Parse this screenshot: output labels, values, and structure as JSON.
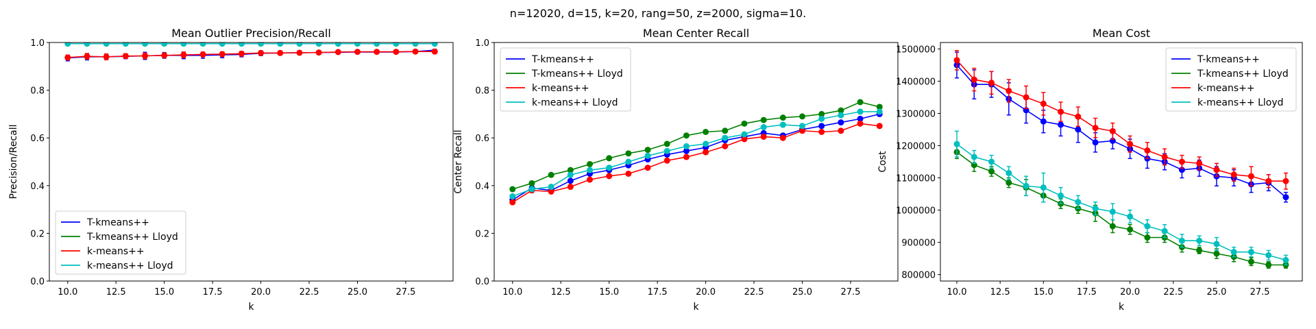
{
  "suptitle": "n=12020, d=15, k=20, rang=50, z=2000, sigma=10.",
  "series_meta": [
    {
      "name": "T-kmeans++",
      "color": "#0000ff"
    },
    {
      "name": "T-kmeans++ Lloyd",
      "color": "#008000"
    },
    {
      "name": "k-means++",
      "color": "#ff0000"
    },
    {
      "name": "k-means++ Lloyd",
      "color": "#00bfbf"
    }
  ],
  "chart_data": [
    {
      "type": "line",
      "title": "Mean Outlier Precision/Recall",
      "xlabel": "k",
      "ylabel": "Precision/Recall",
      "xlim": [
        9.05,
        29.95
      ],
      "ylim": [
        0,
        1.0
      ],
      "xticks": [
        10.0,
        12.5,
        15.0,
        17.5,
        20.0,
        22.5,
        25.0,
        27.5
      ],
      "xtick_labels": [
        "10.0",
        "12.5",
        "15.0",
        "17.5",
        "20.0",
        "22.5",
        "25.0",
        "27.5"
      ],
      "yticks": [
        0,
        0.2,
        0.4,
        0.6,
        0.8,
        1.0
      ],
      "ytick_labels": [
        "0.0",
        "0.2",
        "0.4",
        "0.6",
        "0.8",
        "1.0"
      ],
      "legend": "lower-left",
      "legend_series": [
        0,
        1,
        2,
        3
      ],
      "x": [
        10,
        11,
        12,
        13,
        14,
        15,
        16,
        17,
        18,
        19,
        20,
        21,
        22,
        23,
        24,
        25,
        26,
        27,
        28,
        29
      ],
      "series": [
        {
          "name": "T-kmeans++",
          "markers": false,
          "values": [
            0.935,
            0.94,
            0.94,
            0.942,
            0.944,
            0.946,
            0.946,
            0.946,
            0.948,
            0.95,
            0.955,
            0.956,
            0.957,
            0.958,
            0.959,
            0.96,
            0.96,
            0.96,
            0.962,
            0.968
          ],
          "errors": [
            0.012,
            0.013,
            0.012,
            0.01,
            0.015,
            0.012,
            0.014,
            0.012,
            0.012,
            0.01,
            0.01,
            0.008,
            0.006,
            0.005,
            0.005,
            0.005,
            0.005,
            0.006,
            0.006,
            0.004
          ]
        },
        {
          "name": "T-kmeans++ Lloyd",
          "markers": false,
          "values": [
            0.995,
            0.995,
            0.995,
            0.995,
            0.995,
            0.995,
            0.995,
            0.995,
            0.995,
            0.995,
            0.995,
            0.995,
            0.995,
            0.995,
            0.995,
            0.995,
            0.995,
            0.995,
            0.995,
            0.995
          ],
          "errors": [
            0.003,
            0.003,
            0.003,
            0.003,
            0.003,
            0.003,
            0.003,
            0.003,
            0.003,
            0.003,
            0.003,
            0.003,
            0.003,
            0.003,
            0.003,
            0.003,
            0.003,
            0.003,
            0.003,
            0.003
          ]
        },
        {
          "name": "k-means++",
          "markers": true,
          "values": [
            0.937,
            0.942,
            0.94,
            0.943,
            0.944,
            0.946,
            0.948,
            0.95,
            0.951,
            0.953,
            0.956,
            0.956,
            0.957,
            0.958,
            0.96,
            0.961,
            0.961,
            0.961,
            0.962,
            0.962
          ],
          "errors": [
            0.01,
            0.012,
            0.012,
            0.01,
            0.012,
            0.01,
            0.012,
            0.01,
            0.01,
            0.01,
            0.008,
            0.007,
            0.006,
            0.005,
            0.005,
            0.005,
            0.005,
            0.005,
            0.005,
            0.004
          ]
        },
        {
          "name": "k-means++ Lloyd",
          "markers": true,
          "values": [
            0.995,
            0.995,
            0.995,
            0.995,
            0.995,
            0.995,
            0.995,
            0.995,
            0.995,
            0.995,
            0.995,
            0.995,
            0.995,
            0.995,
            0.995,
            0.995,
            0.995,
            0.995,
            0.995,
            0.995
          ],
          "errors": [
            0.003,
            0.003,
            0.003,
            0.003,
            0.003,
            0.003,
            0.003,
            0.003,
            0.003,
            0.003,
            0.003,
            0.003,
            0.003,
            0.003,
            0.003,
            0.003,
            0.003,
            0.003,
            0.003,
            0.003
          ]
        }
      ]
    },
    {
      "type": "line",
      "title": "Mean Center Recall",
      "xlabel": "k",
      "ylabel": "Center Recall",
      "xlim": [
        9.05,
        29.95
      ],
      "ylim": [
        0,
        1.0
      ],
      "xticks": [
        10.0,
        12.5,
        15.0,
        17.5,
        20.0,
        22.5,
        25.0,
        27.5
      ],
      "xtick_labels": [
        "10.0",
        "12.5",
        "15.0",
        "17.5",
        "20.0",
        "22.5",
        "25.0",
        "27.5"
      ],
      "yticks": [
        0,
        0.2,
        0.4,
        0.6,
        0.8,
        1.0
      ],
      "ytick_labels": [
        "0.0",
        "0.2",
        "0.4",
        "0.6",
        "0.8",
        "1.0"
      ],
      "legend": "upper-left",
      "legend_series": [
        0,
        1,
        2,
        3
      ],
      "x": [
        10,
        11,
        12,
        13,
        14,
        15,
        16,
        17,
        18,
        19,
        20,
        21,
        22,
        23,
        24,
        25,
        26,
        27,
        28,
        29
      ],
      "series": [
        {
          "name": "T-kmeans++",
          "markers": true,
          "values": [
            0.34,
            0.39,
            0.38,
            0.42,
            0.45,
            0.465,
            0.485,
            0.51,
            0.53,
            0.545,
            0.56,
            0.59,
            0.605,
            0.62,
            0.61,
            0.635,
            0.65,
            0.665,
            0.68,
            0.7
          ],
          "errors": []
        },
        {
          "name": "T-kmeans++ Lloyd",
          "markers": true,
          "values": [
            0.385,
            0.41,
            0.445,
            0.465,
            0.49,
            0.515,
            0.535,
            0.55,
            0.575,
            0.61,
            0.625,
            0.63,
            0.66,
            0.675,
            0.685,
            0.69,
            0.7,
            0.715,
            0.75,
            0.73
          ],
          "errors": []
        },
        {
          "name": "k-means++",
          "markers": true,
          "values": [
            0.33,
            0.38,
            0.375,
            0.395,
            0.425,
            0.44,
            0.45,
            0.475,
            0.505,
            0.52,
            0.54,
            0.565,
            0.595,
            0.605,
            0.6,
            0.63,
            0.625,
            0.63,
            0.66,
            0.65
          ],
          "errors": []
        },
        {
          "name": "k-means++ Lloyd",
          "markers": true,
          "values": [
            0.355,
            0.385,
            0.395,
            0.445,
            0.465,
            0.475,
            0.5,
            0.525,
            0.545,
            0.565,
            0.575,
            0.6,
            0.615,
            0.645,
            0.655,
            0.65,
            0.68,
            0.695,
            0.71,
            0.71
          ],
          "errors": []
        }
      ]
    },
    {
      "type": "line",
      "title": "Mean Cost",
      "xlabel": "k",
      "ylabel": "Cost",
      "xlim": [
        9.05,
        29.95
      ],
      "ylim": [
        780000,
        1520000
      ],
      "xticks": [
        10.0,
        12.5,
        15.0,
        17.5,
        20.0,
        22.5,
        25.0,
        27.5
      ],
      "xtick_labels": [
        "10.0",
        "12.5",
        "15.0",
        "17.5",
        "20.0",
        "22.5",
        "25.0",
        "27.5"
      ],
      "yticks": [
        800000,
        900000,
        1000000,
        1100000,
        1200000,
        1300000,
        1400000,
        1500000
      ],
      "ytick_labels": [
        "800000",
        "900000",
        "1000000",
        "1100000",
        "1200000",
        "1300000",
        "1400000",
        "1500000"
      ],
      "legend": "upper-right",
      "legend_series": [
        0,
        1,
        2,
        3
      ],
      "x": [
        10,
        11,
        12,
        13,
        14,
        15,
        16,
        17,
        18,
        19,
        20,
        21,
        22,
        23,
        24,
        25,
        26,
        27,
        28,
        29
      ],
      "series": [
        {
          "name": "T-kmeans++",
          "markers": true,
          "values": [
            1450000,
            1390000,
            1390000,
            1345000,
            1310000,
            1275000,
            1265000,
            1250000,
            1210000,
            1215000,
            1190000,
            1160000,
            1150000,
            1125000,
            1130000,
            1105000,
            1100000,
            1080000,
            1085000,
            1040000
          ],
          "errors": [
            40000,
            45000,
            40000,
            50000,
            40000,
            35000,
            35000,
            40000,
            30000,
            25000,
            30000,
            30000,
            25000,
            25000,
            25000,
            30000,
            25000,
            25000,
            25000,
            15000
          ]
        },
        {
          "name": "T-kmeans++ Lloyd",
          "markers": true,
          "values": [
            1180000,
            1140000,
            1120000,
            1085000,
            1070000,
            1045000,
            1020000,
            1005000,
            990000,
            950000,
            940000,
            915000,
            915000,
            885000,
            875000,
            865000,
            855000,
            840000,
            830000,
            830000
          ],
          "errors": [
            20000,
            20000,
            15000,
            15000,
            25000,
            20000,
            15000,
            15000,
            25000,
            20000,
            15000,
            15000,
            15000,
            15000,
            10000,
            15000,
            15000,
            12000,
            10000,
            10000
          ]
        },
        {
          "name": "k-means++",
          "markers": true,
          "values": [
            1465000,
            1405000,
            1395000,
            1370000,
            1350000,
            1330000,
            1305000,
            1290000,
            1255000,
            1245000,
            1205000,
            1185000,
            1165000,
            1150000,
            1145000,
            1125000,
            1110000,
            1105000,
            1090000,
            1090000
          ],
          "errors": [
            30000,
            35000,
            35000,
            35000,
            35000,
            35000,
            30000,
            30000,
            30000,
            25000,
            25000,
            25000,
            25000,
            20000,
            20000,
            20000,
            20000,
            30000,
            20000,
            25000
          ]
        },
        {
          "name": "k-means++ Lloyd",
          "markers": true,
          "values": [
            1205000,
            1165000,
            1150000,
            1115000,
            1075000,
            1070000,
            1045000,
            1025000,
            1005000,
            995000,
            980000,
            950000,
            935000,
            905000,
            905000,
            895000,
            870000,
            870000,
            860000,
            845000
          ],
          "errors": [
            40000,
            20000,
            20000,
            20000,
            30000,
            45000,
            25000,
            20000,
            20000,
            25000,
            20000,
            20000,
            20000,
            20000,
            15000,
            20000,
            15000,
            15000,
            15000,
            15000
          ]
        }
      ]
    }
  ]
}
